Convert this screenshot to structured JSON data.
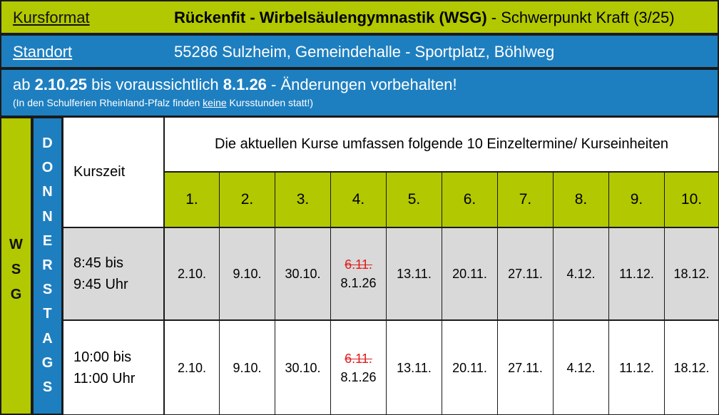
{
  "header": {
    "kursformat_label": "Kursformat",
    "kursformat_value_bold": "Rückenfit - Wirbelsäulengymnastik (WSG)",
    "kursformat_value_rest": " - Schwerpunkt Kraft (3/25)",
    "standort_label": "Standort",
    "standort_value": "55286 Sulzheim, Gemeindehalle - Sportplatz, Böhlweg"
  },
  "notice": {
    "prefix": "ab ",
    "start": "2.10.25",
    "middle": " bis voraussichtlich ",
    "end": "8.1.26",
    "suffix": " - Änderungen vorbehalten!",
    "sub_prefix": "(In den Schulferien Rheinland-Pfalz finden ",
    "sub_underlined": "keine",
    "sub_suffix": " Kursstunden statt!)"
  },
  "side": {
    "course_code": [
      "W",
      "S",
      "G"
    ],
    "weekday": [
      "D",
      "O",
      "N",
      "N",
      "E",
      "R",
      "S",
      "T",
      "A",
      "G",
      "S"
    ]
  },
  "table": {
    "kurszeit_label": "Kurszeit",
    "heading": "Die aktuellen Kurse umfassen folgende 10 Einzeltermine/ Kurseinheiten",
    "numbers": [
      "1.",
      "2.",
      "3.",
      "4.",
      "5.",
      "6.",
      "7.",
      "8.",
      "9.",
      "10."
    ],
    "rows": [
      {
        "time_line1": "8:45 bis",
        "time_line2": "9:45 Uhr",
        "dates": [
          "2.10.",
          "9.10.",
          "30.10.",
          "8.1.26",
          "13.11.",
          "20.11.",
          "27.11.",
          "4.12.",
          "11.12.",
          "18.12."
        ],
        "cancelled_4": "6.11."
      },
      {
        "time_line1": "10:00 bis",
        "time_line2": "11:00 Uhr",
        "dates": [
          "2.10.",
          "9.10.",
          "30.10.",
          "8.1.26",
          "13.11.",
          "20.11.",
          "27.11.",
          "4.12.",
          "11.12.",
          "18.12."
        ],
        "cancelled_4": "6.11."
      }
    ]
  },
  "colors": {
    "green": "#b2c800",
    "blue": "#1e7fc0",
    "grey_row": "#d9d9d9",
    "strike_red": "#e01c1c"
  }
}
